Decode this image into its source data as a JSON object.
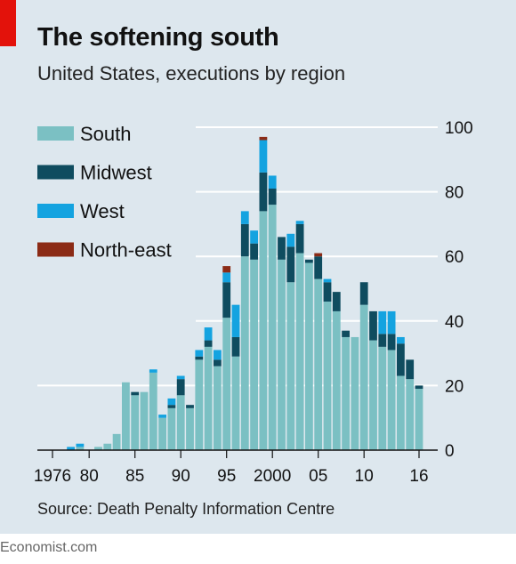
{
  "header": {
    "title": "The softening south",
    "subtitle": "United States, executions by region"
  },
  "source": "Source: Death Penalty Information Centre",
  "footer": "Economist.com",
  "chart_data": {
    "type": "bar",
    "stacked": true,
    "title": "The softening south",
    "subtitle": "United States, executions by region",
    "categories": [
      "1976",
      "1977",
      "1978",
      "1979",
      "1980",
      "1981",
      "1982",
      "1983",
      "1984",
      "1985",
      "1986",
      "1987",
      "1988",
      "1989",
      "1990",
      "1991",
      "1992",
      "1993",
      "1994",
      "1995",
      "1996",
      "1997",
      "1998",
      "1999",
      "2000",
      "2001",
      "2002",
      "2003",
      "2004",
      "2005",
      "2006",
      "2007",
      "2008",
      "2009",
      "2010",
      "2011",
      "2012",
      "2013",
      "2014",
      "2015",
      "2016"
    ],
    "x_tick_labels": [
      {
        "year": "1976",
        "label": "1976"
      },
      {
        "year": "1980",
        "label": "80"
      },
      {
        "year": "1985",
        "label": "85"
      },
      {
        "year": "1990",
        "label": "90"
      },
      {
        "year": "1995",
        "label": "95"
      },
      {
        "year": "2000",
        "label": "2000"
      },
      {
        "year": "2005",
        "label": "05"
      },
      {
        "year": "2010",
        "label": "10"
      },
      {
        "year": "2016",
        "label": "16"
      }
    ],
    "y_ticks": [
      0,
      20,
      40,
      60,
      80,
      100
    ],
    "ylim": [
      0,
      100
    ],
    "grid": true,
    "legend_position": "top-left",
    "series": [
      {
        "name": "South",
        "color": "#7bc0c3",
        "values": [
          0,
          0,
          0,
          1,
          0,
          1,
          2,
          5,
          21,
          17,
          18,
          24,
          10,
          13,
          17,
          13,
          28,
          32,
          26,
          41,
          29,
          60,
          59,
          74,
          76,
          59,
          52,
          61,
          58,
          53,
          46,
          43,
          35,
          35,
          45,
          34,
          32,
          31,
          23,
          22,
          19
        ]
      },
      {
        "name": "Midwest",
        "color": "#0f4c5f",
        "values": [
          0,
          0,
          0,
          0,
          0,
          0,
          0,
          0,
          0,
          1,
          0,
          0,
          0,
          1,
          5,
          1,
          1,
          2,
          2,
          11,
          6,
          10,
          5,
          12,
          5,
          7,
          11,
          9,
          1,
          7,
          6,
          6,
          2,
          0,
          7,
          9,
          4,
          5,
          10,
          6,
          1
        ]
      },
      {
        "name": "West",
        "color": "#14a3e0",
        "values": [
          0,
          0,
          1,
          1,
          0,
          0,
          0,
          0,
          0,
          0,
          0,
          1,
          1,
          2,
          1,
          0,
          2,
          4,
          3,
          3,
          10,
          4,
          4,
          10,
          4,
          0,
          4,
          1,
          0,
          0,
          1,
          0,
          0,
          0,
          0,
          0,
          7,
          7,
          2,
          0,
          0
        ]
      },
      {
        "name": "North-east",
        "color": "#8b2b16",
        "values": [
          0,
          0,
          0,
          0,
          0,
          0,
          0,
          0,
          0,
          0,
          0,
          0,
          0,
          0,
          0,
          0,
          0,
          0,
          0,
          2,
          0,
          0,
          0,
          1,
          0,
          0,
          0,
          0,
          0,
          1,
          0,
          0,
          0,
          0,
          0,
          0,
          0,
          0,
          0,
          0,
          0
        ]
      }
    ]
  }
}
